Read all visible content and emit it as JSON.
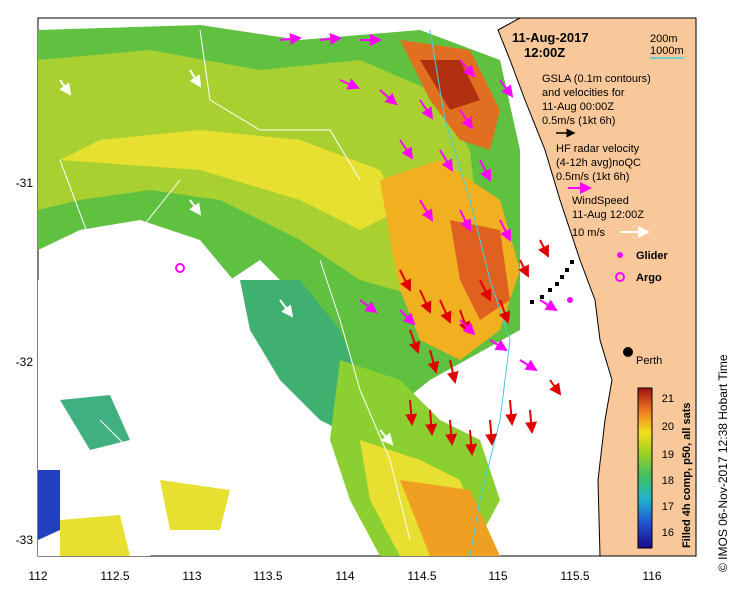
{
  "map": {
    "date_line": "11-Aug-2017",
    "time_line": "12:00Z",
    "x_ticks": [
      "112",
      "112.5",
      "113",
      "113.5",
      "114",
      "114.5",
      "115",
      "115.5",
      "116"
    ],
    "y_ticks": [
      "-31",
      "-32",
      "-33"
    ],
    "contour_legend": [
      "200m",
      "1000m"
    ],
    "gsla_label": [
      "GSLA (0.1m contours)",
      "and velocities for",
      "11-Aug 00:00Z",
      "0.5m/s (1kt 6h)"
    ],
    "hf_label": [
      "HF radar velocity",
      "(4-12h avg)noQC",
      "0.5m/s (1kt 6h)"
    ],
    "wind_label": [
      "WindSpeed",
      "11-Aug 12:00Z",
      "10 m/s"
    ],
    "glider_label": "Glider",
    "argo_label": "Argo",
    "city_label": "Perth",
    "colorbar_ticks": [
      "21",
      "20",
      "19",
      "18",
      "17",
      "16"
    ],
    "colorbar_title": "Filled 4h comp, p50, all sats",
    "footer": "© IMOS 06-Nov-2017 12:38 Hobart Time",
    "colors": {
      "land": "#f8c89a",
      "gsla_arrow": "#000000",
      "hf_arrow": "#ff00ff",
      "wind_arrow": "#ffffff",
      "radar_red": "#e00000",
      "glider": "#ff00ff"
    }
  }
}
